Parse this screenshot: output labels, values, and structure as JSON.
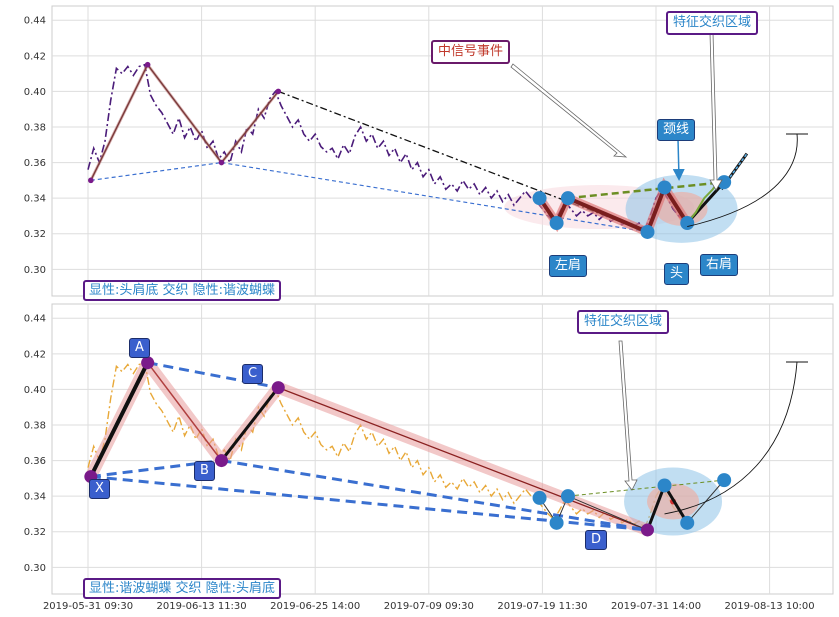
{
  "chart_data": {
    "type": "line",
    "x_ticks": [
      "2019-05-31 09:30",
      "2019-06-13 11:30",
      "2019-06-25 14:00",
      "2019-07-09 09:30",
      "2019-07-19 11:30",
      "2019-07-31 14:00",
      "2019-08-13 10:00"
    ],
    "y_ticks": [
      "0.30",
      "0.32",
      "0.34",
      "0.36",
      "0.38",
      "0.40",
      "0.42",
      "0.44"
    ],
    "ylim": [
      0.285,
      0.448
    ],
    "grid": true,
    "panels": [
      {
        "description": "显性:头肩底 交织 隐性:谐波蝴蝶",
        "annotations": {
          "signal_event": "中信号事件",
          "feature_zone": "特征交织区域",
          "neckline": "颈线",
          "left_shoulder": "左肩",
          "head": "头",
          "right_shoulder": "右肩"
        },
        "colors": {
          "price": "#4b1c7a",
          "pattern": "#7a1e1e",
          "pattern_glow": "#e07a7a",
          "pivot": "#2c86c9",
          "neck": "#6b8e23"
        },
        "harmonic_points": [
          {
            "x": 0.5,
            "y": 0.35
          },
          {
            "x": 10.5,
            "y": 0.415
          },
          {
            "x": 23.5,
            "y": 0.36
          },
          {
            "x": 33.5,
            "y": 0.4
          }
        ],
        "hs_points": [
          {
            "x": 79.5,
            "y": 0.34
          },
          {
            "x": 82.5,
            "y": 0.326
          },
          {
            "x": 84.5,
            "y": 0.34
          },
          {
            "x": 98.5,
            "y": 0.321
          },
          {
            "x": 101.5,
            "y": 0.346
          },
          {
            "x": 105.5,
            "y": 0.326
          },
          {
            "x": 112.0,
            "y": 0.349
          }
        ]
      },
      {
        "description": "显性:谐波蝴蝶 交织 隐性:头肩底",
        "annotations": {
          "feature_zone": "特征交织区域"
        },
        "point_labels": [
          "X",
          "A",
          "B",
          "C",
          "D"
        ],
        "colors": {
          "price": "#e8a838",
          "pattern": "#1a1a1a",
          "pattern_glow": "#e89a9a",
          "pivot": "#7a1a8a",
          "dash": "#3a6fd0"
        },
        "harmonic_points": [
          {
            "x": 0.5,
            "y": 0.351
          },
          {
            "x": 10.5,
            "y": 0.415
          },
          {
            "x": 23.5,
            "y": 0.36
          },
          {
            "x": 33.5,
            "y": 0.401
          },
          {
            "x": 98.5,
            "y": 0.321
          }
        ],
        "hs_points": [
          {
            "x": 79.5,
            "y": 0.339
          },
          {
            "x": 82.5,
            "y": 0.325
          },
          {
            "x": 84.5,
            "y": 0.34
          },
          {
            "x": 98.5,
            "y": 0.321
          },
          {
            "x": 101.5,
            "y": 0.346
          },
          {
            "x": 105.5,
            "y": 0.325
          },
          {
            "x": 112.0,
            "y": 0.349
          }
        ]
      }
    ],
    "price_series": [
      {
        "x": 0,
        "y": 0.356
      },
      {
        "x": 1,
        "y": 0.368
      },
      {
        "x": 2,
        "y": 0.36
      },
      {
        "x": 3,
        "y": 0.372
      },
      {
        "x": 4,
        "y": 0.395
      },
      {
        "x": 5,
        "y": 0.413
      },
      {
        "x": 6,
        "y": 0.41
      },
      {
        "x": 7,
        "y": 0.414
      },
      {
        "x": 8,
        "y": 0.409
      },
      {
        "x": 9,
        "y": 0.414
      },
      {
        "x": 10,
        "y": 0.415
      },
      {
        "x": 11,
        "y": 0.398
      },
      {
        "x": 12,
        "y": 0.392
      },
      {
        "x": 13,
        "y": 0.388
      },
      {
        "x": 14,
        "y": 0.382
      },
      {
        "x": 15,
        "y": 0.376
      },
      {
        "x": 16,
        "y": 0.385
      },
      {
        "x": 17,
        "y": 0.374
      },
      {
        "x": 18,
        "y": 0.38
      },
      {
        "x": 19,
        "y": 0.372
      },
      {
        "x": 20,
        "y": 0.378
      },
      {
        "x": 21,
        "y": 0.368
      },
      {
        "x": 22,
        "y": 0.372
      },
      {
        "x": 23,
        "y": 0.362
      },
      {
        "x": 24,
        "y": 0.366
      },
      {
        "x": 25,
        "y": 0.36
      },
      {
        "x": 26,
        "y": 0.372
      },
      {
        "x": 27,
        "y": 0.366
      },
      {
        "x": 28,
        "y": 0.38
      },
      {
        "x": 29,
        "y": 0.376
      },
      {
        "x": 30,
        "y": 0.39
      },
      {
        "x": 31,
        "y": 0.385
      },
      {
        "x": 32,
        "y": 0.396
      },
      {
        "x": 33,
        "y": 0.4
      },
      {
        "x": 34,
        "y": 0.392
      },
      {
        "x": 35,
        "y": 0.386
      },
      {
        "x": 36,
        "y": 0.38
      },
      {
        "x": 37,
        "y": 0.384
      },
      {
        "x": 38,
        "y": 0.376
      },
      {
        "x": 39,
        "y": 0.372
      },
      {
        "x": 40,
        "y": 0.376
      },
      {
        "x": 41,
        "y": 0.369
      },
      {
        "x": 42,
        "y": 0.366
      },
      {
        "x": 43,
        "y": 0.368
      },
      {
        "x": 44,
        "y": 0.362
      },
      {
        "x": 45,
        "y": 0.37
      },
      {
        "x": 46,
        "y": 0.365
      },
      {
        "x": 47,
        "y": 0.375
      },
      {
        "x": 48,
        "y": 0.38
      },
      {
        "x": 49,
        "y": 0.372
      },
      {
        "x": 50,
        "y": 0.376
      },
      {
        "x": 51,
        "y": 0.368
      },
      {
        "x": 52,
        "y": 0.372
      },
      {
        "x": 53,
        "y": 0.364
      },
      {
        "x": 54,
        "y": 0.368
      },
      {
        "x": 55,
        "y": 0.36
      },
      {
        "x": 56,
        "y": 0.365
      },
      {
        "x": 57,
        "y": 0.356
      },
      {
        "x": 58,
        "y": 0.36
      },
      {
        "x": 59,
        "y": 0.352
      },
      {
        "x": 60,
        "y": 0.356
      },
      {
        "x": 61,
        "y": 0.348
      },
      {
        "x": 62,
        "y": 0.352
      },
      {
        "x": 63,
        "y": 0.345
      },
      {
        "x": 64,
        "y": 0.348
      },
      {
        "x": 65,
        "y": 0.344
      },
      {
        "x": 66,
        "y": 0.35
      },
      {
        "x": 67,
        "y": 0.345
      },
      {
        "x": 68,
        "y": 0.348
      },
      {
        "x": 69,
        "y": 0.342
      },
      {
        "x": 70,
        "y": 0.346
      },
      {
        "x": 71,
        "y": 0.34
      },
      {
        "x": 72,
        "y": 0.344
      },
      {
        "x": 73,
        "y": 0.338
      },
      {
        "x": 74,
        "y": 0.342
      },
      {
        "x": 75,
        "y": 0.336
      },
      {
        "x": 76,
        "y": 0.34
      },
      {
        "x": 77,
        "y": 0.344
      },
      {
        "x": 78,
        "y": 0.34
      },
      {
        "x": 79,
        "y": 0.338
      },
      {
        "x": 80,
        "y": 0.334
      },
      {
        "x": 81,
        "y": 0.33
      },
      {
        "x": 82,
        "y": 0.327
      },
      {
        "x": 83,
        "y": 0.332
      },
      {
        "x": 84,
        "y": 0.338
      },
      {
        "x": 85,
        "y": 0.334
      },
      {
        "x": 86,
        "y": 0.33
      },
      {
        "x": 87,
        "y": 0.333
      },
      {
        "x": 88,
        "y": 0.33
      },
      {
        "x": 89,
        "y": 0.332
      },
      {
        "x": 90,
        "y": 0.328
      },
      {
        "x": 91,
        "y": 0.331
      },
      {
        "x": 92,
        "y": 0.327
      },
      {
        "x": 93,
        "y": 0.329
      },
      {
        "x": 94,
        "y": 0.325
      },
      {
        "x": 95,
        "y": 0.327
      },
      {
        "x": 96,
        "y": 0.324
      },
      {
        "x": 97,
        "y": 0.326
      },
      {
        "x": 98,
        "y": 0.322
      },
      {
        "x": 99,
        "y": 0.33
      },
      {
        "x": 100,
        "y": 0.34
      },
      {
        "x": 101,
        "y": 0.345
      },
      {
        "x": 102,
        "y": 0.34
      },
      {
        "x": 103,
        "y": 0.334
      },
      {
        "x": 104,
        "y": 0.33
      },
      {
        "x": 105,
        "y": 0.326
      }
    ],
    "forecast": [
      {
        "x": 105.5,
        "y": 0.326
      },
      {
        "x": 107,
        "y": 0.332
      },
      {
        "x": 108.5,
        "y": 0.34
      },
      {
        "x": 110,
        "y": 0.345
      },
      {
        "x": 111,
        "y": 0.35
      },
      {
        "x": 112,
        "y": 0.348
      }
    ]
  }
}
